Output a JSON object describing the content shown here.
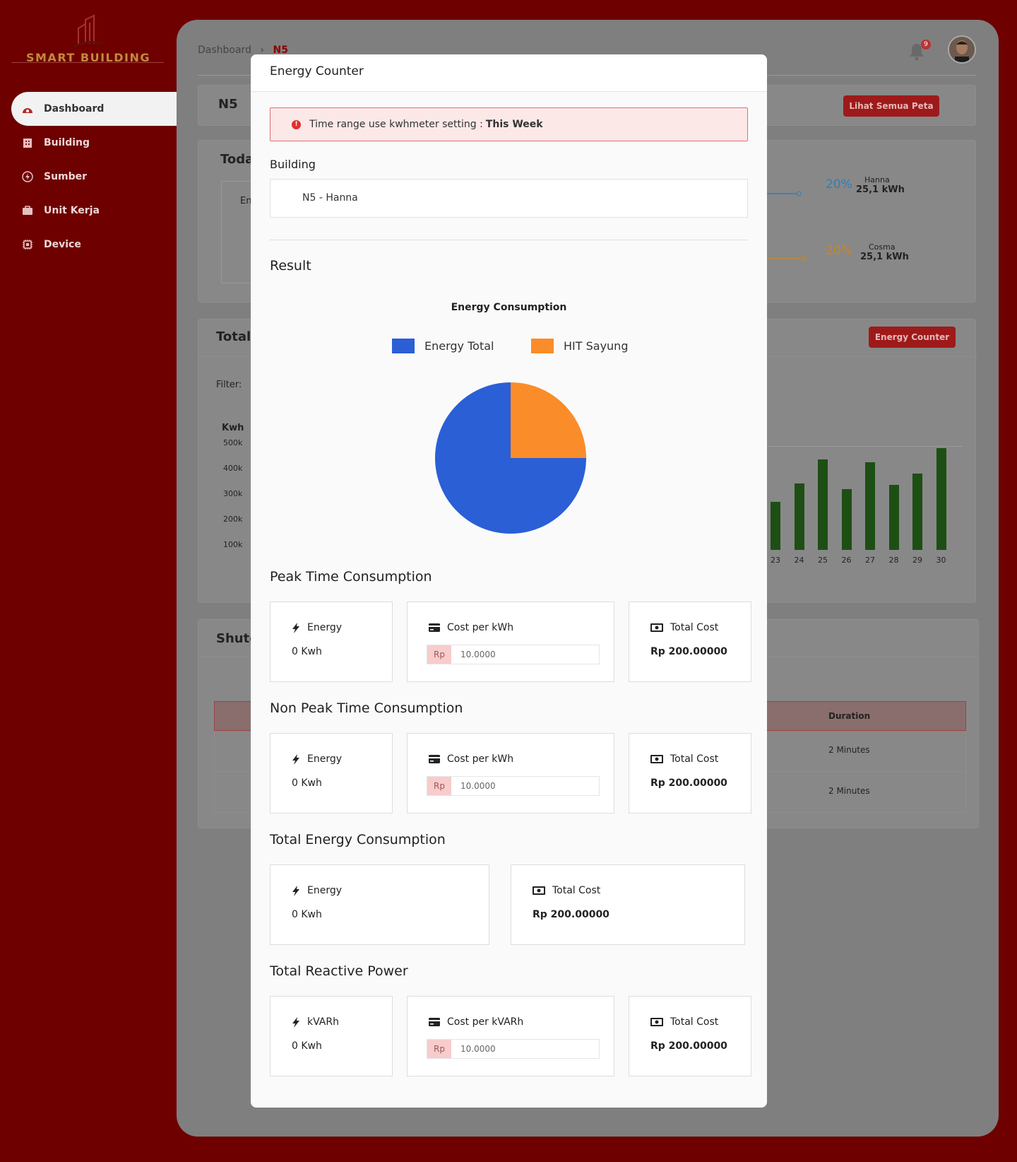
{
  "app": {
    "name": "SMART BUILDING"
  },
  "sidebar": {
    "items": [
      {
        "label": "Dashboard",
        "icon": "dashboard-icon"
      },
      {
        "label": "Building",
        "icon": "building-icon"
      },
      {
        "label": "Sumber",
        "icon": "energy-source-icon"
      },
      {
        "label": "Unit Kerja",
        "icon": "briefcase-icon"
      },
      {
        "label": "Device",
        "icon": "chip-icon"
      }
    ]
  },
  "header": {
    "breadcrumb_root": "Dashboard",
    "breadcrumb_sep": "›",
    "breadcrumb_current": "N5",
    "notification_count": "9"
  },
  "background": {
    "page_title": "N5",
    "map_button": "Lihat Semua Peta",
    "today_title": "Toda",
    "today_box_text": "En",
    "donut": [
      {
        "pct": "20%",
        "name": "Hanna",
        "value": "25,1 kWh",
        "color": "#2f7fb8"
      },
      {
        "pct": "20%",
        "name": "Cosma",
        "value": "25,1 kWh",
        "color": "#c2872a"
      }
    ],
    "total_title": "Total",
    "energy_counter_button": "Energy Counter",
    "filter_label": "Filter:",
    "y_axis_label": "Kwh",
    "y_ticks": [
      "500k",
      "400k",
      "300k",
      "200k",
      "100k"
    ],
    "bar_chart": {
      "type": "bar",
      "categories": [
        "23",
        "24",
        "25",
        "26",
        "27",
        "28",
        "29",
        "30"
      ],
      "values": [
        170,
        235,
        320,
        215,
        310,
        230,
        270,
        360
      ]
    },
    "shutdown_title": "Shutd",
    "table_header": "Duration",
    "table_rows": [
      "2 Minutes",
      "2 Minutes"
    ]
  },
  "modal": {
    "title": "Energy Counter",
    "alert_text": "Time range use kwhmeter setting : ",
    "alert_bold": "This Week",
    "building_label": "Building",
    "building_value": "N5 - Hanna",
    "result_title": "Result",
    "peak_title": "Peak Time Consumption",
    "nonpeak_title": "Non Peak Time Consumption",
    "total_title": "Total Energy Consumption",
    "reactive_title": "Total Reactive Power",
    "energy_label": "Energy",
    "energy_value": "0 Kwh",
    "cost_per_kwh_label": "Cost per kWh",
    "cost_per_kvarh_label": "Cost per kVARh",
    "kvarh_label": "kVARh",
    "currency_prefix": "Rp",
    "cost_input_value": "10.0000",
    "total_cost_label": "Total Cost",
    "total_cost_value": "Rp 200.00000"
  },
  "chart_data": {
    "type": "pie",
    "title": "Energy Consumption",
    "categories": [
      "Energy Total",
      "HIT Sayung"
    ],
    "values": [
      75,
      25
    ],
    "colors": [
      "#2a5fd6",
      "#fb8c2a"
    ]
  }
}
